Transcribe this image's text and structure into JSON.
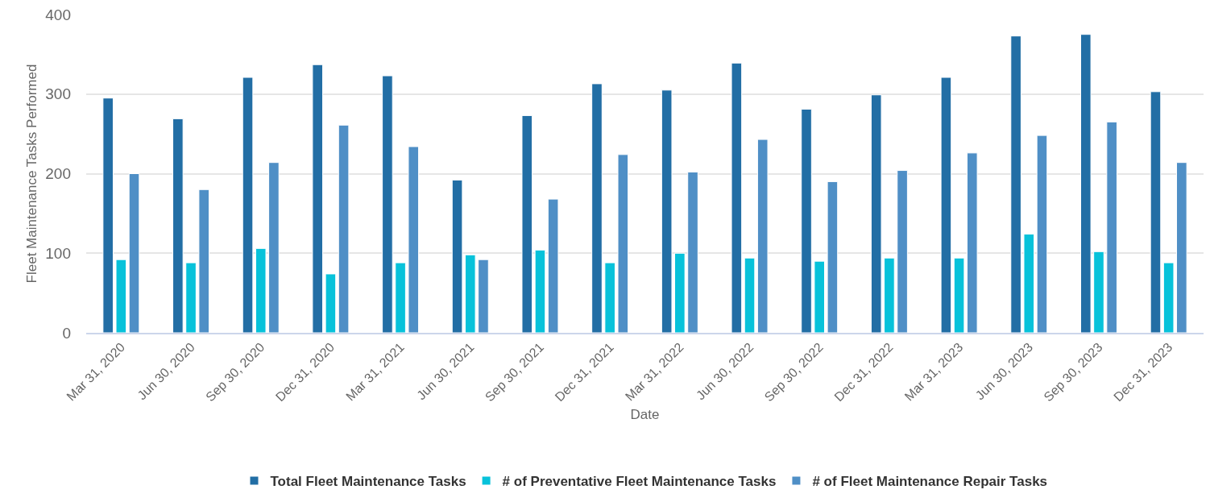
{
  "chart_data": {
    "type": "bar",
    "xlabel": "Date",
    "ylabel": "Fleet Maintenance Tasks Performed",
    "categories": [
      "Mar 31, 2020",
      "Jun 30, 2020",
      "Sep 30, 2020",
      "Dec 31, 2020",
      "Mar 31, 2021",
      "Jun 30, 2021",
      "Sep 30, 2021",
      "Dec 31, 2021",
      "Mar 31, 2022",
      "Jun 30, 2022",
      "Sep 30, 2022",
      "Dec 31, 2022",
      "Mar 31, 2023",
      "Jun 30, 2023",
      "Sep 30, 2023",
      "Dec 31, 2023"
    ],
    "series": [
      {
        "name": "Total Fleet Maintenance Tasks",
        "color": "#226ea5",
        "values": [
          295,
          269,
          321,
          337,
          323,
          192,
          273,
          313,
          305,
          339,
          281,
          299,
          321,
          373,
          375,
          303
        ]
      },
      {
        "name": "# of Preventative Fleet Maintenance Tasks",
        "color": "#07c2da",
        "values": [
          92,
          88,
          106,
          74,
          88,
          98,
          104,
          88,
          100,
          94,
          90,
          94,
          94,
          124,
          102,
          88
        ]
      },
      {
        "name": "# of Fleet Maintenance Repair Tasks",
        "color": "#4f8fc6",
        "values": [
          200,
          180,
          214,
          261,
          234,
          92,
          168,
          224,
          202,
          243,
          190,
          204,
          226,
          248,
          265,
          214
        ]
      }
    ],
    "ylim": [
      0,
      400
    ],
    "yticks": [
      0,
      100,
      200,
      300,
      400
    ],
    "grid": "y",
    "legend": "bottom"
  }
}
